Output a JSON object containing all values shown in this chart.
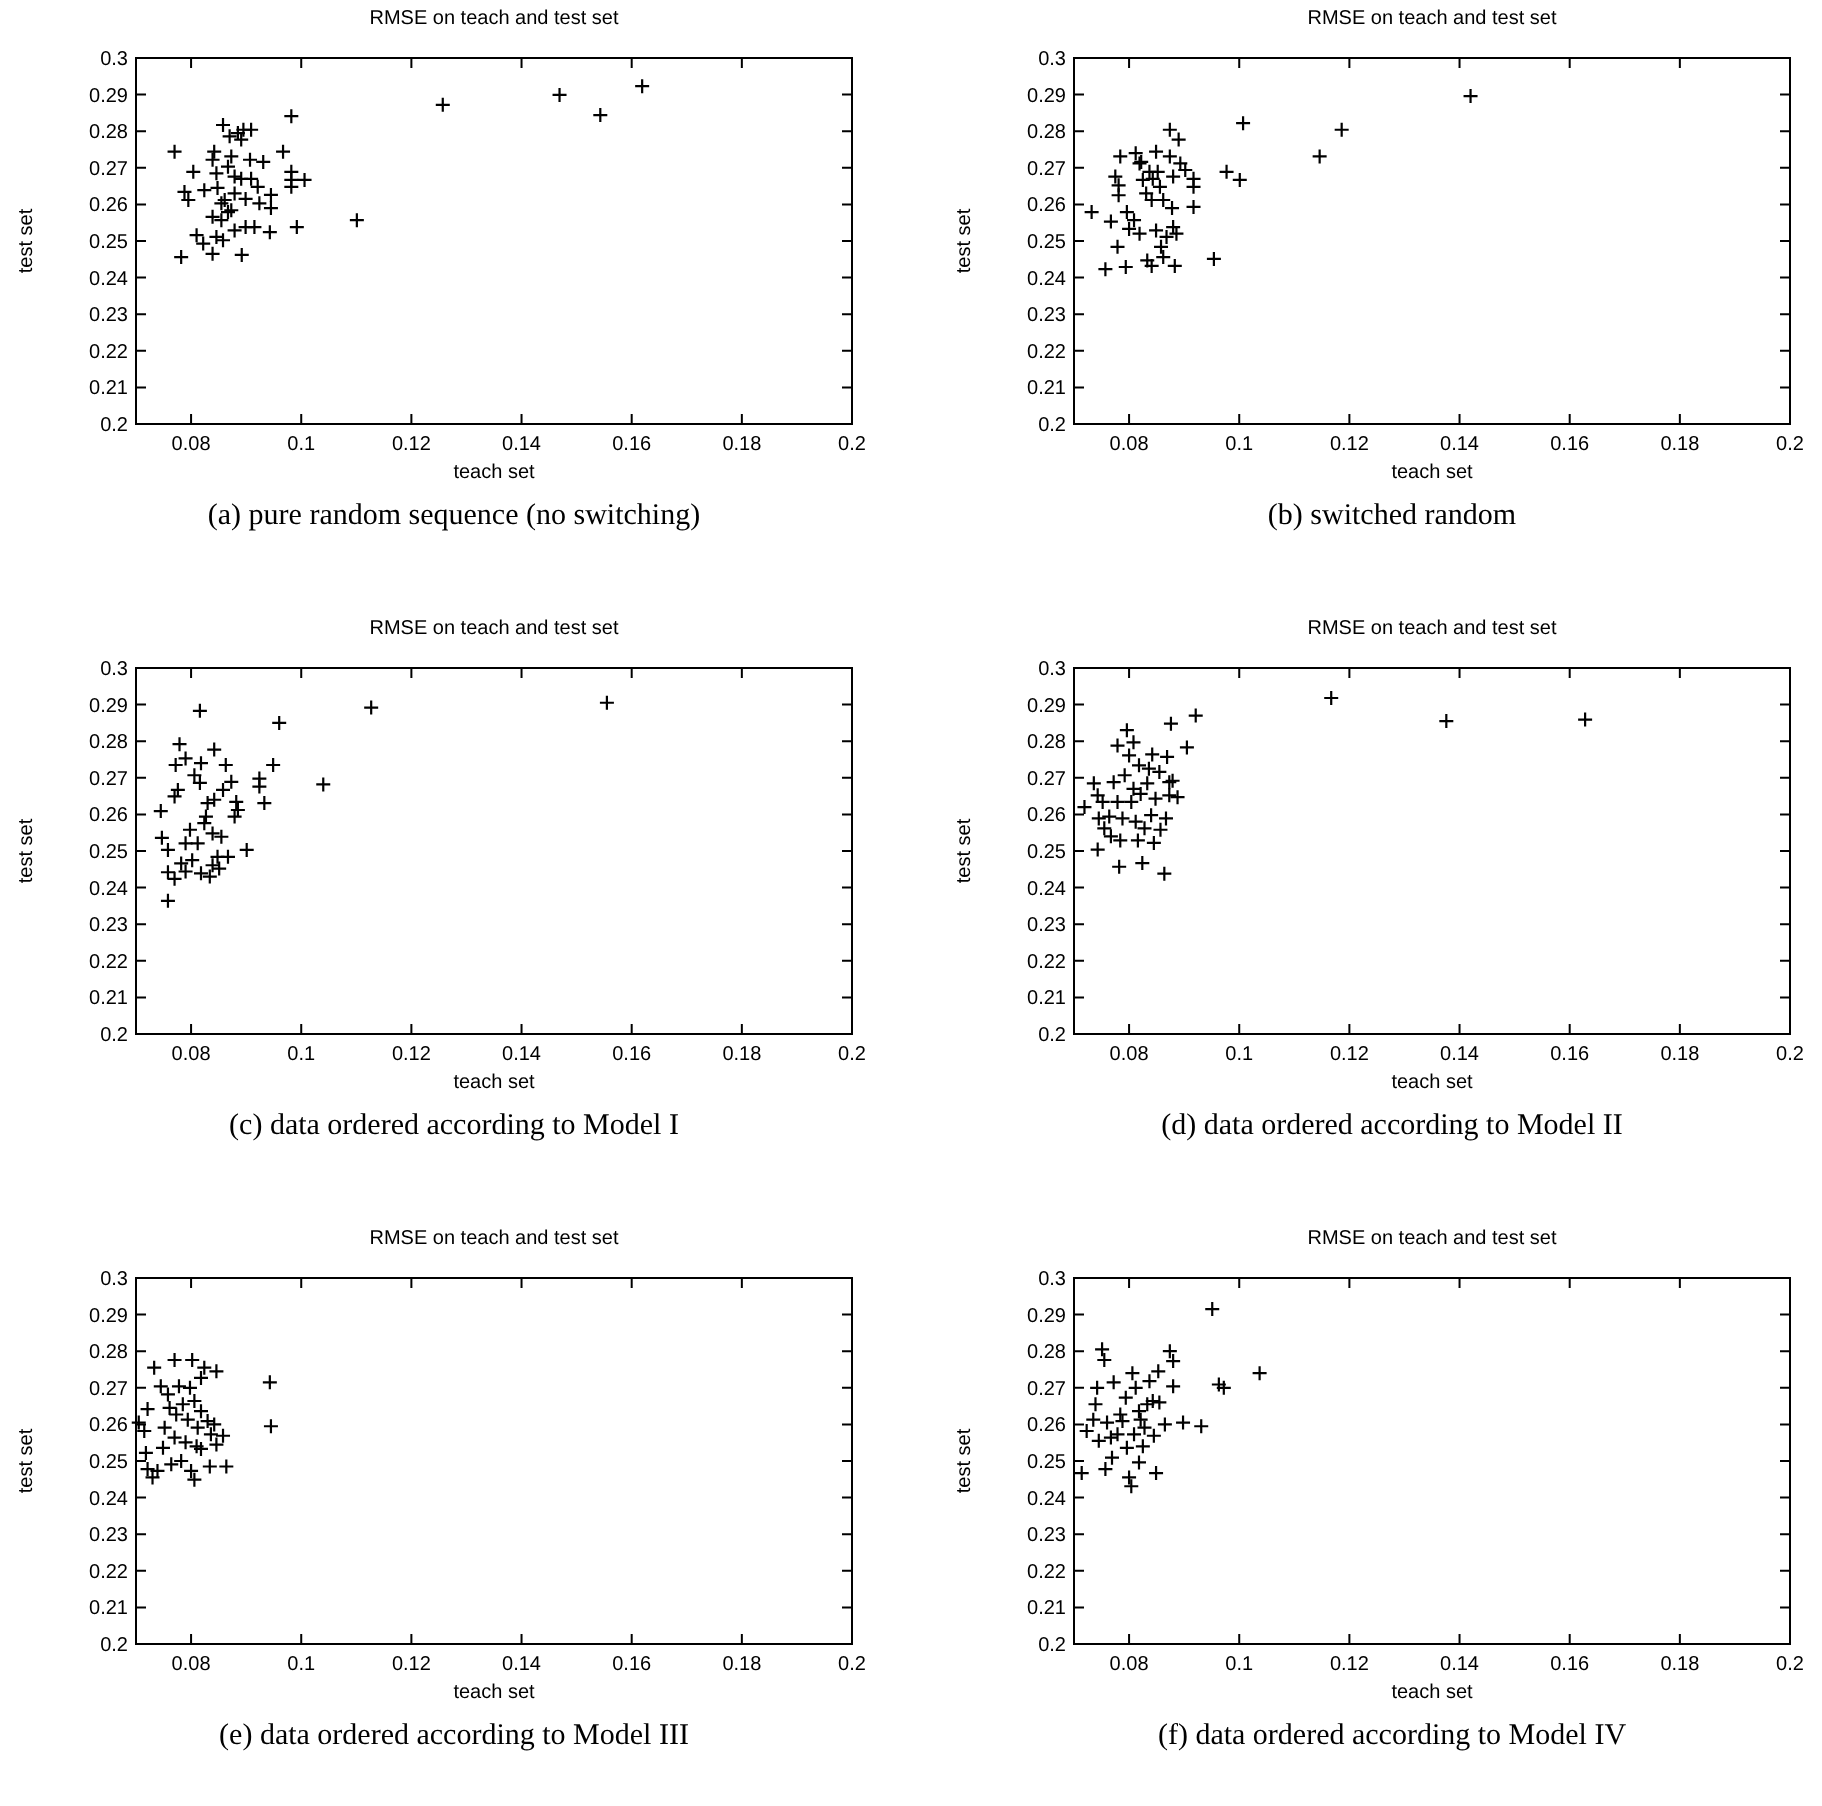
{
  "chart_data": [
    {
      "type": "scatter",
      "title": "RMSE on teach and test set",
      "xlabel": "teach set",
      "ylabel": "test set",
      "xlim": [
        0.07,
        0.2
      ],
      "ylim": [
        0.2,
        0.3
      ],
      "xticks": [
        0.08,
        0.1,
        0.12,
        0.14,
        0.16,
        0.18,
        0.2
      ],
      "yticks": [
        0.2,
        0.21,
        0.22,
        0.23,
        0.24,
        0.25,
        0.26,
        0.27,
        0.28,
        0.29,
        0.3
      ],
      "marker": "cross",
      "annotations": [
        "(a)  pure random sequence (no switching)"
      ],
      "series": [
        {
          "color": "#000000",
          "x": [
            0.1257,
            0.1469,
            0.1543,
            0.1619,
            0.1101,
            0.0992,
            0.0982,
            0.0967,
            0.1006,
            0.0982,
            0.0982,
            0.0982,
            0.0945,
            0.0945,
            0.0943,
            0.077,
            0.0782,
            0.0788,
            0.0795,
            0.0804,
            0.081,
            0.0822,
            0.0824,
            0.0839,
            0.0839,
            0.0842,
            0.0846,
            0.0848,
            0.0839,
            0.0846,
            0.0855,
            0.0858,
            0.0867,
            0.087,
            0.0873,
            0.0879,
            0.0885,
            0.0891,
            0.0895,
            0.0909,
            0.0907,
            0.0891,
            0.0909,
            0.0892,
            0.0879,
            0.0899,
            0.0915,
            0.0924,
            0.0921,
            0.0931,
            0.0861,
            0.0867,
            0.0855,
            0.0899,
            0.0879,
            0.0858,
            0.0873
          ],
          "values": [
            0.2872,
            0.2899,
            0.2844,
            0.2923,
            0.2557,
            0.2538,
            0.2841,
            0.2744,
            0.2667,
            0.2689,
            0.2667,
            0.2648,
            0.2626,
            0.259,
            0.2524,
            0.2744,
            0.2456,
            0.2634,
            0.2612,
            0.2689,
            0.2516,
            0.2493,
            0.2639,
            0.2465,
            0.2722,
            0.2744,
            0.2685,
            0.2645,
            0.2566,
            0.2511,
            0.2557,
            0.2817,
            0.2703,
            0.2786,
            0.2731,
            0.2676,
            0.2795,
            0.2777,
            0.2804,
            0.2804,
            0.2722,
            0.267,
            0.267,
            0.2462,
            0.2529,
            0.2538,
            0.2538,
            0.2603,
            0.2648,
            0.2716,
            0.2612,
            0.2579,
            0.2603,
            0.2615,
            0.263,
            0.2502,
            0.2584
          ]
        }
      ]
    },
    {
      "type": "scatter",
      "title": "RMSE on teach and test set",
      "xlabel": "teach set",
      "ylabel": "test set",
      "xlim": [
        0.07,
        0.2
      ],
      "ylim": [
        0.2,
        0.3
      ],
      "xticks": [
        0.08,
        0.1,
        0.12,
        0.14,
        0.16,
        0.18,
        0.2
      ],
      "yticks": [
        0.2,
        0.21,
        0.22,
        0.23,
        0.24,
        0.25,
        0.26,
        0.27,
        0.28,
        0.29,
        0.3
      ],
      "marker": "cross",
      "annotations": [
        "(b)  switched random"
      ],
      "series": [
        {
          "color": "#000000",
          "x": [
            0.0732,
            0.0757,
            0.0794,
            0.0779,
            0.0767,
            0.0775,
            0.0781,
            0.0784,
            0.0781,
            0.0796,
            0.08,
            0.0809,
            0.0812,
            0.0819,
            0.0819,
            0.0825,
            0.0822,
            0.0831,
            0.0837,
            0.0841,
            0.0833,
            0.0841,
            0.0849,
            0.0852,
            0.0856,
            0.0849,
            0.0858,
            0.0862,
            0.0868,
            0.0874,
            0.0874,
            0.088,
            0.0878,
            0.088,
            0.0883,
            0.0886,
            0.089,
            0.0893,
            0.0902,
            0.0917,
            0.0917,
            0.0917,
            0.0977,
            0.1001,
            0.1007,
            0.0954,
            0.1146,
            0.1186,
            0.142,
            0.0862,
            0.0843
          ],
          "values": [
            0.2579,
            0.2423,
            0.2429,
            0.2484,
            0.2553,
            0.2676,
            0.2652,
            0.2731,
            0.2625,
            0.2579,
            0.2533,
            0.2557,
            0.274,
            0.2712,
            0.252,
            0.2667,
            0.2716,
            0.263,
            0.2689,
            0.2612,
            0.2447,
            0.2432,
            0.2744,
            0.2689,
            0.2648,
            0.2529,
            0.2484,
            0.2456,
            0.2511,
            0.2804,
            0.2731,
            0.2676,
            0.259,
            0.2538,
            0.2432,
            0.252,
            0.2777,
            0.2712,
            0.2694,
            0.267,
            0.2593,
            0.2648,
            0.2689,
            0.2667,
            0.2822,
            0.2451,
            0.2731,
            0.2804,
            0.2896,
            0.2612,
            0.267
          ]
        }
      ]
    },
    {
      "type": "scatter",
      "title": "RMSE on teach and test set",
      "xlabel": "teach set",
      "ylabel": "test set",
      "xlim": [
        0.07,
        0.2
      ],
      "ylim": [
        0.2,
        0.3
      ],
      "xticks": [
        0.08,
        0.1,
        0.12,
        0.14,
        0.16,
        0.18,
        0.2
      ],
      "yticks": [
        0.2,
        0.21,
        0.22,
        0.23,
        0.24,
        0.25,
        0.26,
        0.27,
        0.28,
        0.29,
        0.3
      ],
      "marker": "cross",
      "annotations": [
        "(c)  data ordered according to Model I"
      ],
      "series": [
        {
          "color": "#000000",
          "x": [
            0.1555,
            0.1127,
            0.104,
            0.096,
            0.0949,
            0.0933,
            0.0924,
            0.0924,
            0.0901,
            0.0816,
            0.0779,
            0.079,
            0.0772,
            0.0776,
            0.077,
            0.0745,
            0.0747,
            0.0758,
            0.0758,
            0.0758,
            0.077,
            0.0782,
            0.079,
            0.0798,
            0.0802,
            0.079,
            0.0812,
            0.0818,
            0.0816,
            0.0818,
            0.0827,
            0.0834,
            0.0839,
            0.0839,
            0.0842,
            0.0842,
            0.0848,
            0.0851,
            0.0855,
            0.0858,
            0.0863,
            0.0867,
            0.0873,
            0.0879,
            0.0885,
            0.0882,
            0.083,
            0.0806,
            0.0824
          ],
          "values": [
            0.2905,
            0.2892,
            0.2682,
            0.285,
            0.2735,
            0.2631,
            0.2698,
            0.2676,
            0.2503,
            0.2883,
            0.2792,
            0.2753,
            0.2735,
            0.2667,
            0.2649,
            0.2609,
            0.2536,
            0.2503,
            0.2442,
            0.2364,
            0.2424,
            0.2466,
            0.2521,
            0.2558,
            0.2475,
            0.2444,
            0.2521,
            0.2439,
            0.2686,
            0.274,
            0.2594,
            0.243,
            0.2461,
            0.2548,
            0.2777,
            0.264,
            0.2484,
            0.2452,
            0.2539,
            0.2667,
            0.2735,
            0.2484,
            0.2689,
            0.2594,
            0.2612,
            0.2634,
            0.2631,
            0.2707,
            0.2576
          ]
        }
      ]
    },
    {
      "type": "scatter",
      "title": "RMSE on teach and test set",
      "xlabel": "teach set",
      "ylabel": "test set",
      "xlim": [
        0.07,
        0.2
      ],
      "ylim": [
        0.2,
        0.3
      ],
      "xticks": [
        0.08,
        0.1,
        0.12,
        0.14,
        0.16,
        0.18,
        0.2
      ],
      "yticks": [
        0.2,
        0.21,
        0.22,
        0.23,
        0.24,
        0.25,
        0.26,
        0.27,
        0.28,
        0.29,
        0.3
      ],
      "marker": "cross",
      "annotations": [
        "(d)  data ordered according to Model II"
      ],
      "series": [
        {
          "color": "#000000",
          "x": [
            0.1167,
            0.1376,
            0.1628,
            0.0921,
            0.0905,
            0.0876,
            0.0869,
            0.0719,
            0.0736,
            0.0743,
            0.0752,
            0.0745,
            0.0743,
            0.0755,
            0.0764,
            0.0772,
            0.0779,
            0.0784,
            0.0782,
            0.0788,
            0.0792,
            0.0796,
            0.08,
            0.0804,
            0.0808,
            0.0808,
            0.0812,
            0.0816,
            0.0818,
            0.0821,
            0.0824,
            0.0828,
            0.0833,
            0.0836,
            0.084,
            0.0842,
            0.0848,
            0.0845,
            0.0855,
            0.0857,
            0.0864,
            0.0867,
            0.0873,
            0.0873,
            0.0888,
            0.0879,
            0.0779,
            0.0767
          ],
          "values": [
            0.2918,
            0.2855,
            0.2859,
            0.287,
            0.2783,
            0.2848,
            0.2757,
            0.262,
            0.2685,
            0.2652,
            0.2634,
            0.2589,
            0.2504,
            0.2562,
            0.2594,
            0.2688,
            0.2788,
            0.2529,
            0.2457,
            0.2589,
            0.2707,
            0.283,
            0.2761,
            0.2634,
            0.2797,
            0.267,
            0.258,
            0.2529,
            0.2734,
            0.2656,
            0.2467,
            0.2562,
            0.2685,
            0.2725,
            0.2598,
            0.2764,
            0.2643,
            0.2522,
            0.2716,
            0.2558,
            0.2438,
            0.2589,
            0.2688,
            0.2652,
            0.2647,
            0.2692,
            0.2634,
            0.254
          ]
        }
      ]
    },
    {
      "type": "scatter",
      "title": "RMSE on teach and test set",
      "xlabel": "teach set",
      "ylabel": "test set",
      "xlim": [
        0.07,
        0.2
      ],
      "ylim": [
        0.2,
        0.3
      ],
      "xticks": [
        0.08,
        0.1,
        0.12,
        0.14,
        0.16,
        0.18,
        0.2
      ],
      "yticks": [
        0.2,
        0.21,
        0.22,
        0.23,
        0.24,
        0.25,
        0.26,
        0.27,
        0.28,
        0.29,
        0.3
      ],
      "marker": "cross",
      "annotations": [
        "(e)  data ordered according to Model III"
      ],
      "series": [
        {
          "color": "#000000",
          "x": [
            0.0943,
            0.0945,
            0.0864,
            0.0834,
            0.0846,
            0.0824,
            0.0818,
            0.0802,
            0.077,
            0.0733,
            0.0721,
            0.0705,
            0.0715,
            0.0718,
            0.0721,
            0.073,
            0.0739,
            0.0749,
            0.0752,
            0.0758,
            0.0761,
            0.0764,
            0.077,
            0.0773,
            0.0778,
            0.0782,
            0.0785,
            0.079,
            0.0794,
            0.0798,
            0.08,
            0.0806,
            0.0806,
            0.081,
            0.0812,
            0.0818,
            0.083,
            0.0836,
            0.0842,
            0.0858,
            0.0846,
            0.0818,
            0.0745
          ],
          "values": [
            0.2715,
            0.2595,
            0.2485,
            0.2485,
            0.2745,
            0.2755,
            0.2727,
            0.2776,
            0.2776,
            0.2755,
            0.2642,
            0.2605,
            0.2582,
            0.2522,
            0.2478,
            0.2455,
            0.2473,
            0.2536,
            0.2591,
            0.2682,
            0.2645,
            0.2491,
            0.2564,
            0.2627,
            0.2704,
            0.25,
            0.2655,
            0.2551,
            0.2613,
            0.27,
            0.2473,
            0.2664,
            0.2449,
            0.254,
            0.2591,
            0.2636,
            0.2609,
            0.2573,
            0.26,
            0.2569,
            0.2545,
            0.2533,
            0.2704
          ]
        }
      ]
    },
    {
      "type": "scatter",
      "title": "RMSE on teach and test set",
      "xlabel": "teach set",
      "ylabel": "test set",
      "xlim": [
        0.07,
        0.2
      ],
      "ylim": [
        0.2,
        0.3
      ],
      "xticks": [
        0.08,
        0.1,
        0.12,
        0.14,
        0.16,
        0.18,
        0.2
      ],
      "yticks": [
        0.2,
        0.21,
        0.22,
        0.23,
        0.24,
        0.25,
        0.26,
        0.27,
        0.28,
        0.29,
        0.3
      ],
      "marker": "cross",
      "annotations": [
        "(f)  data ordered according to Model IV"
      ],
      "series": [
        {
          "color": "#000000",
          "x": [
            0.0714,
            0.0723,
            0.0735,
            0.0739,
            0.0742,
            0.0751,
            0.0755,
            0.0757,
            0.0745,
            0.076,
            0.0767,
            0.0769,
            0.0772,
            0.0779,
            0.0784,
            0.0788,
            0.0794,
            0.0796,
            0.08,
            0.0804,
            0.0809,
            0.0806,
            0.0812,
            0.0818,
            0.0821,
            0.0825,
            0.0828,
            0.0833,
            0.0837,
            0.0843,
            0.0845,
            0.0849,
            0.0853,
            0.0855,
            0.0865,
            0.0874,
            0.088,
            0.088,
            0.0898,
            0.0931,
            0.0951,
            0.0963,
            0.0972,
            0.1037,
            0.0818
          ],
          "values": [
            0.2467,
            0.2582,
            0.2613,
            0.2655,
            0.27,
            0.2805,
            0.2776,
            0.2478,
            0.2555,
            0.2605,
            0.2564,
            0.2509,
            0.2715,
            0.2573,
            0.2627,
            0.2609,
            0.2673,
            0.2536,
            0.2455,
            0.2431,
            0.2573,
            0.274,
            0.27,
            0.2496,
            0.2613,
            0.254,
            0.2591,
            0.2655,
            0.2718,
            0.2664,
            0.2569,
            0.2467,
            0.2745,
            0.266,
            0.26,
            0.28,
            0.2773,
            0.2704,
            0.2605,
            0.2595,
            0.2915,
            0.2709,
            0.27,
            0.274,
            0.2636
          ]
        }
      ]
    }
  ]
}
